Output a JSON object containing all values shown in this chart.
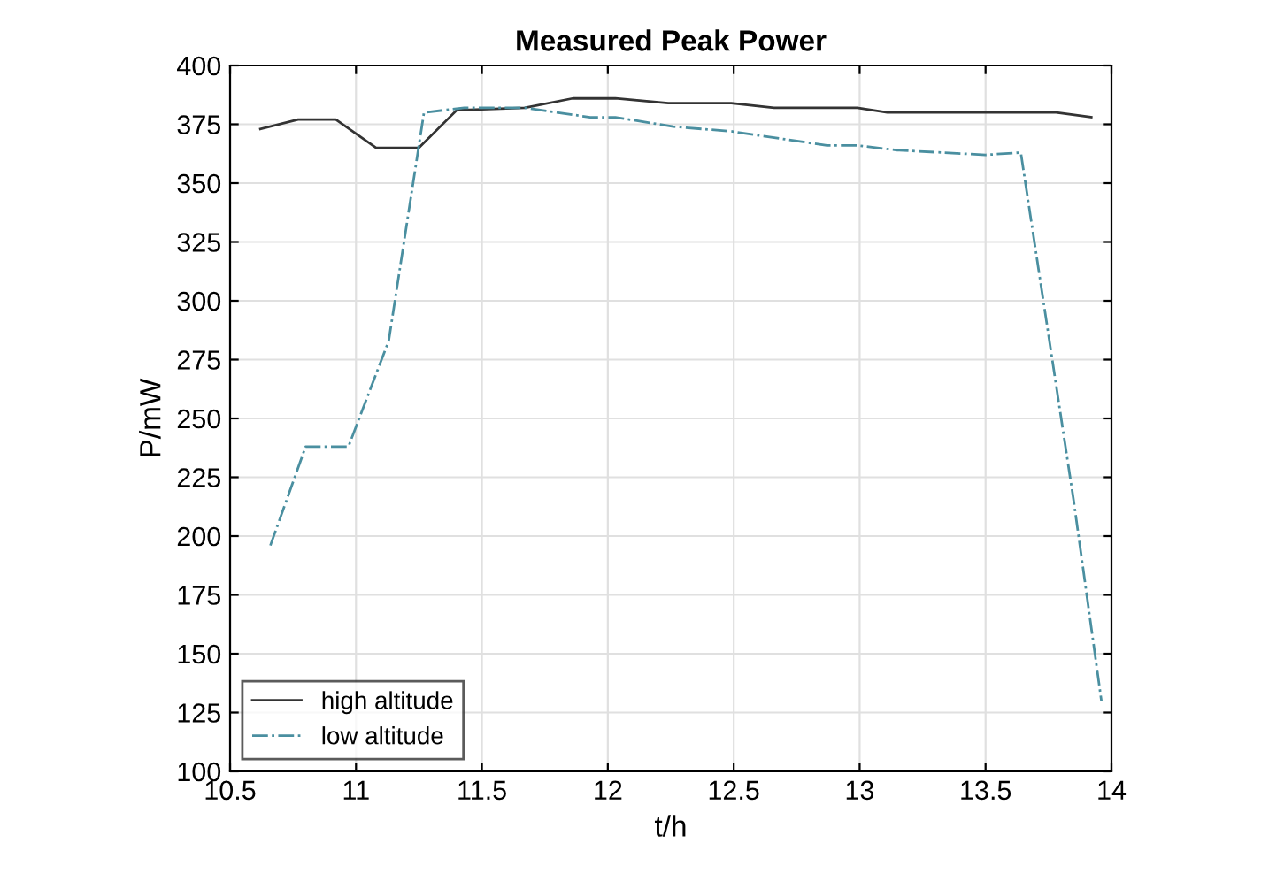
{
  "chart_data": {
    "type": "line",
    "title": "Measured Peak Power",
    "xlabel": "t/h",
    "ylabel": "P/mW",
    "xlim": [
      10.5,
      14
    ],
    "xticks": [
      10.5,
      11,
      11.5,
      12,
      12.5,
      13,
      13.5,
      14
    ],
    "ylim": [
      100,
      400
    ],
    "yticks": [
      100,
      125,
      150,
      175,
      200,
      225,
      250,
      275,
      300,
      325,
      350,
      375,
      400
    ],
    "grid": true,
    "legend": "bottom left",
    "series": [
      {
        "name": "high altitude",
        "color": "#333333",
        "line_style": "solid",
        "x": [
          10.62,
          10.77,
          10.92,
          11.08,
          11.25,
          11.4,
          11.67,
          11.86,
          12.03,
          12.24,
          12.49,
          12.66,
          12.99,
          13.11,
          13.78,
          13.92
        ],
        "values": [
          373,
          377,
          377,
          365,
          365,
          381,
          382,
          386,
          386,
          384,
          384,
          382,
          382,
          380,
          380,
          378
        ]
      },
      {
        "name": "low altitude",
        "color": "#4a8fa0",
        "line_style": "dashdot",
        "x": [
          10.66,
          10.8,
          10.97,
          11.13,
          11.27,
          11.43,
          11.67,
          11.93,
          12.03,
          12.26,
          12.49,
          12.87,
          12.99,
          13.15,
          13.5,
          13.64,
          13.85,
          13.96
        ],
        "values": [
          196,
          238,
          238,
          283,
          380,
          382,
          382,
          378,
          378,
          374,
          372,
          366,
          366,
          364,
          362,
          363,
          215,
          130
        ]
      }
    ]
  }
}
